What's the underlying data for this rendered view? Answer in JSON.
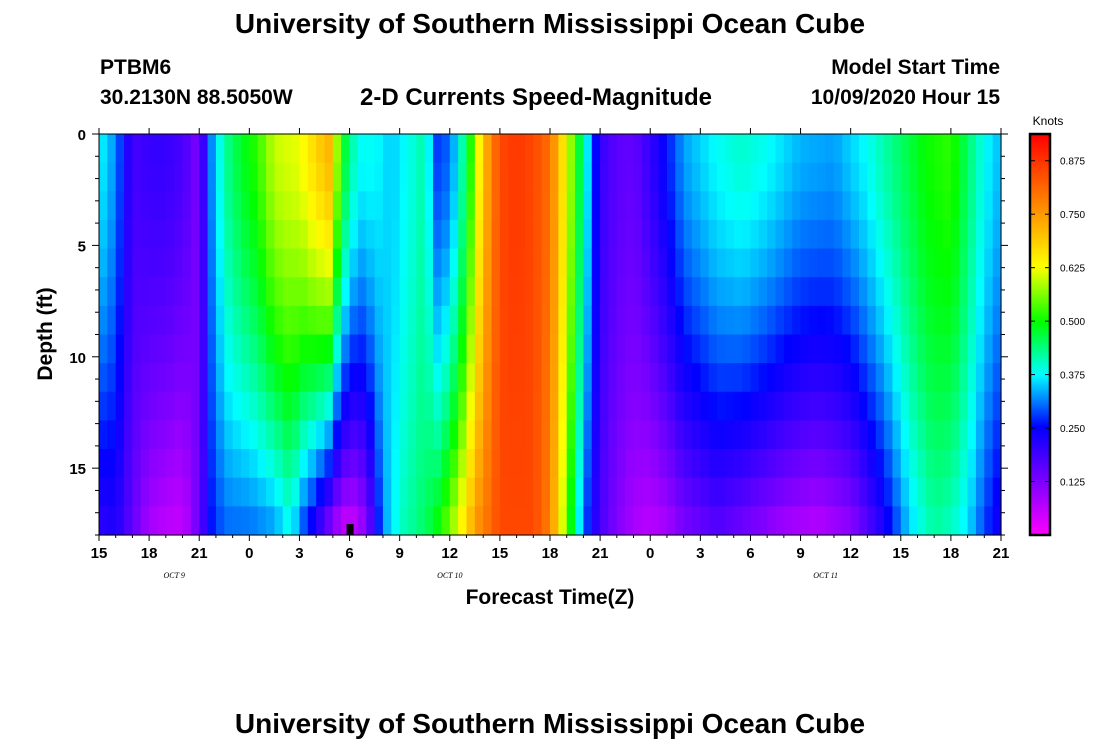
{
  "header": {
    "title": "University of Southern Mississippi Ocean Cube",
    "station": "PTBM6",
    "coords": "30.2130N 88.5050W",
    "subtitle": "2-D Currents Speed-Magnitude",
    "model_start_label": "Model Start Time",
    "model_start_value": "10/09/2020 Hour 15"
  },
  "footer": {
    "title": "University of Southern Mississippi Ocean Cube"
  },
  "chart_data": {
    "type": "heatmap",
    "title": "2-D Currents Speed-Magnitude",
    "xlabel": "Forecast Time(Z)",
    "ylabel": "Depth (ft)",
    "x_start_hour": 0,
    "x_end_hour": 54,
    "x_ticks": [
      {
        "hour": 0,
        "label": "15"
      },
      {
        "hour": 3,
        "label": "18"
      },
      {
        "hour": 6,
        "label": "21"
      },
      {
        "hour": 9,
        "label": "0"
      },
      {
        "hour": 12,
        "label": "3"
      },
      {
        "hour": 15,
        "label": "6"
      },
      {
        "hour": 18,
        "label": "9"
      },
      {
        "hour": 21,
        "label": "12"
      },
      {
        "hour": 24,
        "label": "15"
      },
      {
        "hour": 27,
        "label": "18"
      },
      {
        "hour": 30,
        "label": "21"
      },
      {
        "hour": 33,
        "label": "0"
      },
      {
        "hour": 36,
        "label": "3"
      },
      {
        "hour": 39,
        "label": "6"
      },
      {
        "hour": 42,
        "label": "9"
      },
      {
        "hour": 45,
        "label": "12"
      },
      {
        "hour": 48,
        "label": "15"
      },
      {
        "hour": 51,
        "label": "18"
      },
      {
        "hour": 54,
        "label": "21"
      }
    ],
    "date_labels": [
      {
        "hour": 4.5,
        "label": "OCT 9"
      },
      {
        "hour": 21,
        "label": "OCT 10"
      },
      {
        "hour": 43.5,
        "label": "OCT 11"
      }
    ],
    "marker_hour": 15,
    "depth_range": [
      0,
      18
    ],
    "y_ticks": [
      0,
      5,
      10,
      15
    ],
    "colorbar": {
      "label": "Knots",
      "min": 0,
      "max": 0.9375,
      "ticks": [
        "0.875",
        "0.750",
        "0.625",
        "0.500",
        "0.375",
        "0.250",
        "0.125"
      ],
      "tick_values": [
        0.875,
        0.75,
        0.625,
        0.5,
        0.375,
        0.25,
        0.125
      ]
    },
    "hour_step": 0.5,
    "depth_bins": 14,
    "surface_profile": [
      [
        0,
        0.38
      ],
      [
        1,
        0.32
      ],
      [
        2,
        0.18
      ],
      [
        3,
        0.2
      ],
      [
        4,
        0.2
      ],
      [
        5,
        0.18
      ],
      [
        6,
        0.12
      ],
      [
        6.6,
        0.3
      ],
      [
        7.5,
        0.42
      ],
      [
        8.5,
        0.48
      ],
      [
        9.5,
        0.52
      ],
      [
        10.5,
        0.6
      ],
      [
        12,
        0.62
      ],
      [
        13,
        0.68
      ],
      [
        13.8,
        0.72
      ],
      [
        14.5,
        0.5
      ],
      [
        15.5,
        0.38
      ],
      [
        16.5,
        0.38
      ],
      [
        17.5,
        0.35
      ],
      [
        18.5,
        0.38
      ],
      [
        19.5,
        0.42
      ],
      [
        20.2,
        0.28
      ],
      [
        21,
        0.3
      ],
      [
        22,
        0.45
      ],
      [
        23,
        0.7
      ],
      [
        24,
        0.85
      ],
      [
        25,
        0.87
      ],
      [
        26,
        0.85
      ],
      [
        27,
        0.8
      ],
      [
        28,
        0.62
      ],
      [
        29,
        0.42
      ],
      [
        30,
        0.2
      ],
      [
        31,
        0.16
      ],
      [
        32,
        0.15
      ],
      [
        33,
        0.2
      ],
      [
        34,
        0.26
      ],
      [
        35,
        0.33
      ],
      [
        37,
        0.38
      ],
      [
        38.5,
        0.4
      ],
      [
        40,
        0.38
      ],
      [
        42,
        0.34
      ],
      [
        44,
        0.33
      ],
      [
        46,
        0.38
      ],
      [
        48,
        0.45
      ],
      [
        49.5,
        0.5
      ],
      [
        51,
        0.52
      ],
      [
        52,
        0.45
      ],
      [
        53,
        0.38
      ],
      [
        54,
        0.34
      ]
    ],
    "bottom_profile": [
      [
        0,
        0.2
      ],
      [
        1,
        0.22
      ],
      [
        2,
        0.15
      ],
      [
        3,
        0.08
      ],
      [
        4,
        0.06
      ],
      [
        5,
        0.05
      ],
      [
        6,
        0.15
      ],
      [
        6.6,
        0.25
      ],
      [
        7.5,
        0.3
      ],
      [
        9,
        0.3
      ],
      [
        10.5,
        0.32
      ],
      [
        11.5,
        0.38
      ],
      [
        12,
        0.3
      ],
      [
        13,
        0.2
      ],
      [
        14,
        0.08
      ],
      [
        15,
        0.03
      ],
      [
        16,
        0.1
      ],
      [
        17,
        0.32
      ],
      [
        18,
        0.4
      ],
      [
        19.5,
        0.45
      ],
      [
        20.5,
        0.52
      ],
      [
        21.5,
        0.62
      ],
      [
        22.5,
        0.75
      ],
      [
        24,
        0.85
      ],
      [
        26,
        0.85
      ],
      [
        27,
        0.78
      ],
      [
        28,
        0.55
      ],
      [
        29,
        0.3
      ],
      [
        30,
        0.18
      ],
      [
        31,
        0.12
      ],
      [
        32,
        0.08
      ],
      [
        33,
        0.06
      ],
      [
        34,
        0.08
      ],
      [
        35,
        0.12
      ],
      [
        37,
        0.16
      ],
      [
        39,
        0.12
      ],
      [
        41,
        0.08
      ],
      [
        43,
        0.06
      ],
      [
        45,
        0.1
      ],
      [
        47,
        0.22
      ],
      [
        48.5,
        0.35
      ],
      [
        50,
        0.42
      ],
      [
        51,
        0.4
      ],
      [
        52,
        0.36
      ],
      [
        53,
        0.28
      ],
      [
        54,
        0.22
      ]
    ]
  }
}
